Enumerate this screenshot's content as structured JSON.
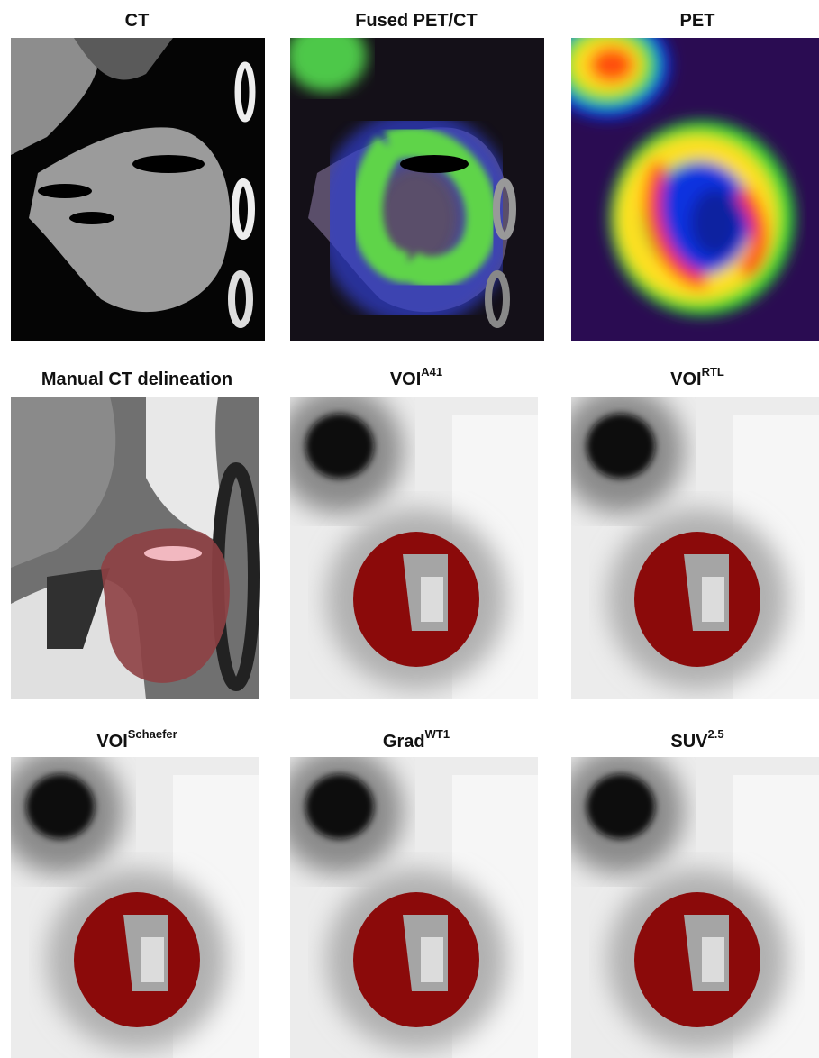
{
  "panels": [
    {
      "title": {
        "base": "CT"
      }
    },
    {
      "title": {
        "base": "Fused PET/CT"
      }
    },
    {
      "title": {
        "base": "PET"
      }
    },
    {
      "title": {
        "base": "Manual CT delineation"
      }
    },
    {
      "title": {
        "base": "VOI",
        "sup": "A41"
      }
    },
    {
      "title": {
        "base": "VOI",
        "sup": "RTL"
      }
    },
    {
      "title": {
        "base": "VOI",
        "sup": "Schaefer"
      }
    },
    {
      "title": {
        "base": "Grad",
        "sup": "WT1"
      }
    },
    {
      "title": {
        "base": "SUV",
        "sup": "2.5"
      }
    }
  ]
}
